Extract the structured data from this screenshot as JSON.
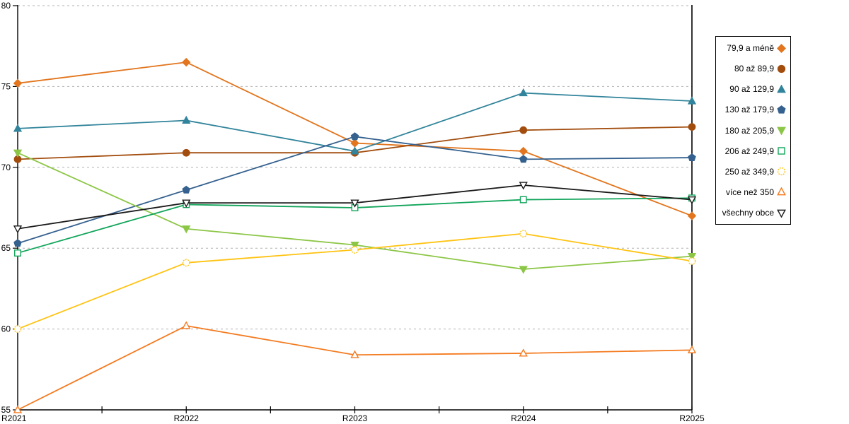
{
  "chart_data": {
    "type": "line",
    "categories": [
      "R2021",
      "R2022",
      "R2023",
      "R2024",
      "R2025"
    ],
    "series": [
      {
        "name": "79,9 a méně",
        "marker": "diamond",
        "filled": true,
        "color": "#E2751D",
        "values": [
          75.2,
          76.5,
          71.5,
          71.0,
          67.0
        ]
      },
      {
        "name": "80 až 89,9",
        "marker": "circle",
        "filled": true,
        "color": "#A24D0E",
        "values": [
          70.5,
          70.9,
          70.9,
          72.3,
          72.5
        ]
      },
      {
        "name": "90 až 129,9",
        "marker": "triangle-up",
        "filled": true,
        "color": "#31849B",
        "values": [
          72.4,
          72.9,
          71.0,
          74.6,
          74.1
        ]
      },
      {
        "name": "130 až 179,9",
        "marker": "pentagon",
        "filled": true,
        "color": "#35618F",
        "values": [
          65.3,
          68.6,
          71.9,
          70.5,
          70.6
        ]
      },
      {
        "name": "180 až 205,9",
        "marker": "triangle-down",
        "filled": true,
        "color": "#8CC646",
        "values": [
          70.9,
          66.2,
          65.2,
          63.7,
          64.5
        ]
      },
      {
        "name": "206 až 249,9",
        "marker": "square",
        "filled": false,
        "color": "#12A55B",
        "values": [
          64.7,
          67.7,
          67.5,
          68.0,
          68.1
        ]
      },
      {
        "name": "250 až 349,9",
        "marker": "circle-dashed",
        "filled": false,
        "color": "#FFC312",
        "values": [
          60.0,
          64.1,
          64.9,
          65.9,
          64.2
        ]
      },
      {
        "name": "více než 350",
        "marker": "triangle-up",
        "filled": false,
        "color": "#F47B20",
        "values": [
          55.0,
          60.2,
          58.4,
          58.5,
          58.7
        ]
      },
      {
        "name": "všechny obce",
        "marker": "triangle-down",
        "filled": false,
        "color": "#1A1A1A",
        "values": [
          66.2,
          67.8,
          67.8,
          68.9,
          68.0
        ]
      }
    ],
    "title": "",
    "xlabel": "",
    "ylabel": "",
    "ylim": [
      55,
      80
    ],
    "yticks": [
      55,
      60,
      65,
      70,
      75,
      80
    ],
    "grid": "horizontal-dashed",
    "gridline_color": "#b0b0b0",
    "axis_color": "#000000",
    "legend_position": "right"
  }
}
